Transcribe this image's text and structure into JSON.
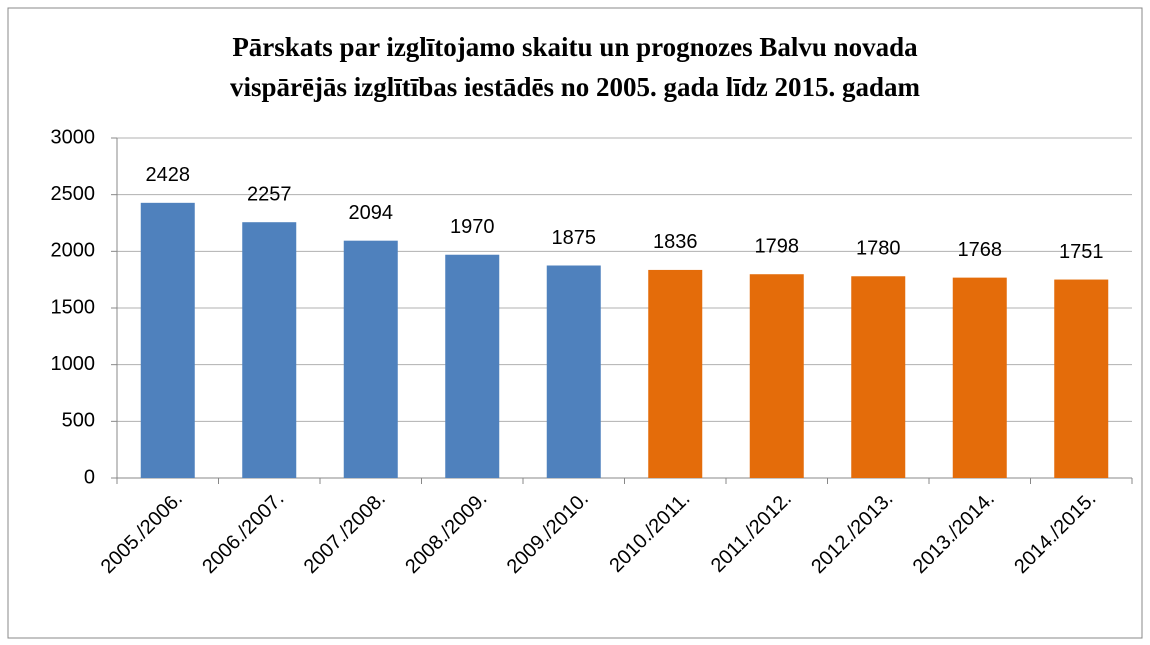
{
  "chart_data": {
    "type": "bar",
    "title": [
      "Pārskats  par izglītojamo skaitu un prognozes Balvu novada",
      "vispārējās izglītības iestādēs no 2005. gada līdz 2015. gadam"
    ],
    "categories": [
      "2005./2006.",
      "2006./2007.",
      "2007./2008.",
      "2008./2009.",
      "2009./2010.",
      "2010./2011.",
      "2011./2012.",
      "2012./2013.",
      "2013./2014.",
      "2014./2015."
    ],
    "values": [
      2428,
      2257,
      2094,
      1970,
      1875,
      1836,
      1798,
      1780,
      1768,
      1751
    ],
    "colors": [
      "#4f81bd",
      "#4f81bd",
      "#4f81bd",
      "#4f81bd",
      "#4f81bd",
      "#e46c0a",
      "#e46c0a",
      "#e46c0a",
      "#e46c0a",
      "#e46c0a"
    ],
    "ylim": [
      0,
      3000
    ],
    "yticks": [
      0,
      500,
      1000,
      1500,
      2000,
      2500,
      3000
    ],
    "grid": true
  }
}
